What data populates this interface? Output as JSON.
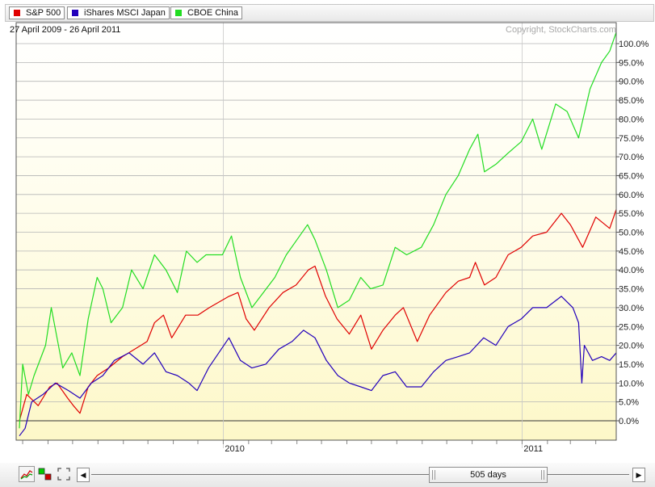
{
  "legend": {
    "items": [
      {
        "label": "S&P 500",
        "color": "#e00000"
      },
      {
        "label": "iShares MSCI Japan",
        "color": "#2200bb"
      },
      {
        "label": "CBOE China",
        "color": "#22dd22"
      }
    ]
  },
  "header": {
    "date_range": "27 April 2009 - 26 April 2011",
    "copyright": "Copyright, StockCharts.com"
  },
  "footer": {
    "range_label": "505 days",
    "icons": [
      "line-chart-icon",
      "color-swatch-icon",
      "fullscreen-icon"
    ]
  },
  "chart_data": {
    "type": "line",
    "title": "",
    "xlabel": "",
    "ylabel": "",
    "x_start": "27 April 2009",
    "x_end": "26 April 2011",
    "x_tick_labels": [
      "2010",
      "2011"
    ],
    "ylim": [
      -5,
      105
    ],
    "y_tick_labels": [
      "0.0%",
      "5.0%",
      "10.0%",
      "15.0%",
      "20.0%",
      "25.0%",
      "30.0%",
      "35.0%",
      "40.0%",
      "45.0%",
      "50.0%",
      "55.0%",
      "60.0%",
      "65.0%",
      "70.0%",
      "75.0%",
      "80.0%",
      "85.0%",
      "90.0%",
      "95.0%",
      "100.0%"
    ],
    "grid": true,
    "legend_position": "top-left",
    "series": [
      {
        "name": "S&P 500",
        "color": "#e00000",
        "points": [
          [
            "2009-04-27",
            0
          ],
          [
            "2009-05-06",
            7
          ],
          [
            "2009-05-20",
            4
          ],
          [
            "2009-06-03",
            9
          ],
          [
            "2009-06-12",
            10
          ],
          [
            "2009-06-25",
            6
          ],
          [
            "2009-07-02",
            4
          ],
          [
            "2009-07-10",
            2
          ],
          [
            "2009-07-20",
            9
          ],
          [
            "2009-07-31",
            12
          ],
          [
            "2009-08-14",
            14
          ],
          [
            "2009-08-31",
            17
          ],
          [
            "2009-09-15",
            19
          ],
          [
            "2009-09-30",
            21
          ],
          [
            "2009-10-09",
            26
          ],
          [
            "2009-10-20",
            28
          ],
          [
            "2009-10-30",
            22
          ],
          [
            "2009-11-16",
            28
          ],
          [
            "2009-12-01",
            28
          ],
          [
            "2009-12-15",
            30
          ],
          [
            "2010-01-08",
            33
          ],
          [
            "2010-01-19",
            34
          ],
          [
            "2010-01-29",
            27
          ],
          [
            "2010-02-08",
            24
          ],
          [
            "2010-02-26",
            30
          ],
          [
            "2010-03-15",
            34
          ],
          [
            "2010-03-31",
            36
          ],
          [
            "2010-04-15",
            40
          ],
          [
            "2010-04-23",
            41
          ],
          [
            "2010-05-06",
            33
          ],
          [
            "2010-05-20",
            27
          ],
          [
            "2010-06-04",
            23
          ],
          [
            "2010-06-18",
            28
          ],
          [
            "2010-07-01",
            19
          ],
          [
            "2010-07-15",
            24
          ],
          [
            "2010-07-30",
            28
          ],
          [
            "2010-08-09",
            30
          ],
          [
            "2010-08-26",
            21
          ],
          [
            "2010-09-10",
            28
          ],
          [
            "2010-09-30",
            34
          ],
          [
            "2010-10-15",
            37
          ],
          [
            "2010-10-29",
            38
          ],
          [
            "2010-11-05",
            42
          ],
          [
            "2010-11-16",
            36
          ],
          [
            "2010-11-30",
            38
          ],
          [
            "2010-12-15",
            44
          ],
          [
            "2010-12-31",
            46
          ],
          [
            "2011-01-14",
            49
          ],
          [
            "2011-01-31",
            50
          ],
          [
            "2011-02-18",
            55
          ],
          [
            "2011-03-01",
            52
          ],
          [
            "2011-03-16",
            46
          ],
          [
            "2011-04-01",
            54
          ],
          [
            "2011-04-18",
            51
          ],
          [
            "2011-04-26",
            56
          ]
        ]
      },
      {
        "name": "iShares MSCI Japan",
        "color": "#2200bb",
        "points": [
          [
            "2009-04-27",
            -4
          ],
          [
            "2009-05-04",
            -2
          ],
          [
            "2009-05-12",
            5
          ],
          [
            "2009-05-26",
            7
          ],
          [
            "2009-06-10",
            10
          ],
          [
            "2009-06-26",
            8
          ],
          [
            "2009-07-10",
            6
          ],
          [
            "2009-07-24",
            10
          ],
          [
            "2009-08-07",
            12
          ],
          [
            "2009-08-21",
            16
          ],
          [
            "2009-09-08",
            18
          ],
          [
            "2009-09-25",
            15
          ],
          [
            "2009-10-09",
            18
          ],
          [
            "2009-10-23",
            13
          ],
          [
            "2009-11-06",
            12
          ],
          [
            "2009-11-20",
            10
          ],
          [
            "2009-11-30",
            8
          ],
          [
            "2009-12-14",
            14
          ],
          [
            "2010-01-08",
            22
          ],
          [
            "2010-01-22",
            16
          ],
          [
            "2010-02-05",
            14
          ],
          [
            "2010-02-22",
            15
          ],
          [
            "2010-03-10",
            19
          ],
          [
            "2010-03-26",
            21
          ],
          [
            "2010-04-09",
            24
          ],
          [
            "2010-04-23",
            22
          ],
          [
            "2010-05-07",
            16
          ],
          [
            "2010-05-21",
            12
          ],
          [
            "2010-06-04",
            10
          ],
          [
            "2010-06-18",
            9
          ],
          [
            "2010-07-01",
            8
          ],
          [
            "2010-07-15",
            12
          ],
          [
            "2010-07-30",
            13
          ],
          [
            "2010-08-13",
            9
          ],
          [
            "2010-08-31",
            9
          ],
          [
            "2010-09-15",
            13
          ],
          [
            "2010-09-30",
            16
          ],
          [
            "2010-10-15",
            17
          ],
          [
            "2010-10-29",
            18
          ],
          [
            "2010-11-15",
            22
          ],
          [
            "2010-11-30",
            20
          ],
          [
            "2010-12-15",
            25
          ],
          [
            "2010-12-31",
            27
          ],
          [
            "2011-01-14",
            30
          ],
          [
            "2011-01-31",
            30
          ],
          [
            "2011-02-18",
            33
          ],
          [
            "2011-03-04",
            30
          ],
          [
            "2011-03-11",
            26
          ],
          [
            "2011-03-15",
            10
          ],
          [
            "2011-03-18",
            20
          ],
          [
            "2011-03-28",
            16
          ],
          [
            "2011-04-08",
            17
          ],
          [
            "2011-04-18",
            16
          ],
          [
            "2011-04-26",
            18
          ]
        ]
      },
      {
        "name": "CBOE China",
        "color": "#22dd22",
        "points": [
          [
            "2009-04-27",
            -2
          ],
          [
            "2009-05-01",
            15
          ],
          [
            "2009-05-08",
            7
          ],
          [
            "2009-05-15",
            12
          ],
          [
            "2009-05-29",
            20
          ],
          [
            "2009-06-05",
            30
          ],
          [
            "2009-06-12",
            22
          ],
          [
            "2009-06-19",
            14
          ],
          [
            "2009-06-30",
            18
          ],
          [
            "2009-07-10",
            12
          ],
          [
            "2009-07-20",
            27
          ],
          [
            "2009-07-31",
            38
          ],
          [
            "2009-08-07",
            35
          ],
          [
            "2009-08-17",
            26
          ],
          [
            "2009-08-31",
            30
          ],
          [
            "2009-09-11",
            40
          ],
          [
            "2009-09-25",
            35
          ],
          [
            "2009-10-09",
            44
          ],
          [
            "2009-10-23",
            40
          ],
          [
            "2009-11-06",
            34
          ],
          [
            "2009-11-17",
            45
          ],
          [
            "2009-11-30",
            42
          ],
          [
            "2009-12-11",
            44
          ],
          [
            "2009-12-31",
            44
          ],
          [
            "2010-01-11",
            49
          ],
          [
            "2010-01-22",
            38
          ],
          [
            "2010-02-05",
            30
          ],
          [
            "2010-02-19",
            34
          ],
          [
            "2010-03-05",
            38
          ],
          [
            "2010-03-19",
            44
          ],
          [
            "2010-04-01",
            48
          ],
          [
            "2010-04-14",
            52
          ],
          [
            "2010-04-23",
            48
          ],
          [
            "2010-05-07",
            40
          ],
          [
            "2010-05-21",
            30
          ],
          [
            "2010-06-04",
            32
          ],
          [
            "2010-06-18",
            38
          ],
          [
            "2010-06-30",
            35
          ],
          [
            "2010-07-15",
            36
          ],
          [
            "2010-07-30",
            46
          ],
          [
            "2010-08-13",
            44
          ],
          [
            "2010-08-31",
            46
          ],
          [
            "2010-09-15",
            52
          ],
          [
            "2010-09-30",
            60
          ],
          [
            "2010-10-15",
            65
          ],
          [
            "2010-10-29",
            72
          ],
          [
            "2010-11-08",
            76
          ],
          [
            "2010-11-16",
            66
          ],
          [
            "2010-11-30",
            68
          ],
          [
            "2010-12-15",
            71
          ],
          [
            "2010-12-31",
            74
          ],
          [
            "2011-01-14",
            80
          ],
          [
            "2011-01-25",
            72
          ],
          [
            "2011-02-11",
            84
          ],
          [
            "2011-02-25",
            82
          ],
          [
            "2011-03-11",
            75
          ],
          [
            "2011-03-25",
            88
          ],
          [
            "2011-04-08",
            95
          ],
          [
            "2011-04-18",
            98
          ],
          [
            "2011-04-26",
            103
          ]
        ]
      }
    ]
  }
}
